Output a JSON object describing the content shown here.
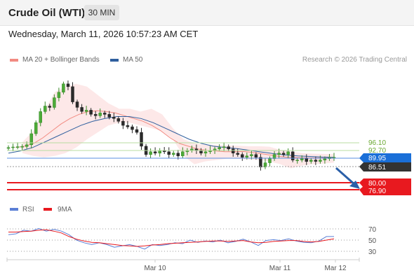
{
  "header": {
    "instrument": "Crude Oil (WTI)",
    "timeframe": "30 MIN"
  },
  "datetime": "Wednesday, March 11, 2026 10:57:23 AM CET",
  "legend": {
    "items": [
      {
        "label": "MA 20 + Bollinger Bands",
        "color": "#f28b82"
      },
      {
        "label": "MA 50",
        "color": "#2f5f9e"
      }
    ],
    "credit": "Research © 2026 Trading Central"
  },
  "price_levels": [
    {
      "value": "96.10",
      "color": "#6aa832"
    },
    {
      "value": "92.70",
      "color": "#6aa832"
    }
  ],
  "price_boxes": [
    {
      "value": "89.95",
      "color": "#1a6fd8",
      "text_color": "#ffffff"
    },
    {
      "value": "86.51",
      "color": "#333333",
      "text_color": "#ffffff"
    },
    {
      "value": "80.00",
      "color": "#e8191f",
      "text_color": "#ffffff"
    },
    {
      "value": "76.90",
      "color": "#e8191f",
      "text_color": "#ffffff"
    }
  ],
  "rsi_legend": {
    "items": [
      {
        "label": "RSI",
        "color": "#5b7fd6"
      },
      {
        "label": "9MA",
        "color": "#e8191f"
      }
    ]
  },
  "rsi_levels": [
    "70",
    "50",
    "30"
  ],
  "x_axis": {
    "labels": [
      "Mar 10",
      "Mar 11",
      "Mar 12"
    ]
  },
  "chart_data": {
    "type": "candlestick",
    "title": "Crude Oil (WTI)",
    "timeframe": "30 MIN",
    "y_levels": {
      "resistance": [
        96.1,
        92.7
      ],
      "pivot": 89.95,
      "last": 86.51,
      "support": [
        80.0,
        76.9
      ]
    },
    "close_series": [
      90.0,
      90.2,
      90.3,
      90.4,
      91.0,
      95.0,
      99.0,
      103.0,
      105.0,
      104.5,
      108.0,
      110.0,
      113.0,
      112.0,
      106.5,
      104.5,
      103.0,
      103.5,
      102.0,
      101.5,
      102.5,
      102.0,
      101.0,
      100.5,
      99.5,
      98.0,
      97.5,
      96.5,
      95.5,
      90.5,
      87.5,
      88.5,
      88.0,
      89.0,
      88.5,
      87.5,
      88.0,
      87.0,
      88.5,
      89.0,
      89.5,
      89.0,
      88.0,
      88.5,
      89.0,
      89.5,
      90.0,
      90.3,
      89.5,
      88.0,
      87.5,
      86.5,
      87.0,
      87.5,
      86.5,
      83.0,
      84.5,
      86.0,
      87.5,
      88.0,
      87.5,
      88.5,
      85.5,
      85.5,
      86.0,
      85.0,
      85.5,
      85.0,
      85.5,
      86.0,
      86.5,
      86.51
    ],
    "ma20_bollinger": {
      "ma": [
        90,
        90.5,
        91.5,
        93.5,
        96,
        98.5,
        100.5,
        102,
        103,
        103.3,
        103,
        102.5,
        101.5,
        100.5,
        99.5,
        98,
        96,
        93.5,
        91.5,
        90.5,
        89.5,
        89,
        88.8,
        88.5,
        88.5,
        88.6,
        88.3,
        87.8,
        87.3,
        86.8,
        86.5,
        86.4,
        86.3,
        86.3,
        86.3,
        86.4
      ],
      "upper": [
        92,
        96,
        103,
        110,
        112,
        113,
        112,
        109,
        106,
        104,
        104,
        103,
        104,
        102,
        97,
        93,
        91.5,
        91,
        91,
        90.8,
        90.7,
        90.5,
        90.5,
        90.3,
        89.2,
        88.6,
        88,
        87.8,
        87.7,
        87.6
      ],
      "lower": [
        88,
        87,
        86.5,
        87,
        88,
        90,
        93,
        95.5,
        98,
        99,
        99,
        98,
        97,
        96,
        93,
        87,
        84,
        85,
        85.5,
        86,
        86,
        85.7,
        85.5,
        85,
        84,
        82.5,
        83.5,
        84,
        84.2,
        84.6
      ]
    },
    "ma50": [
      88,
      88.8,
      90,
      92,
      94,
      96,
      98,
      99.5,
      100.5,
      101.2,
      101.2,
      100.5,
      99,
      97,
      95,
      93,
      91.5,
      90.5,
      90,
      89.6,
      89,
      88.4,
      87.8,
      87.3,
      87,
      86.8,
      86.6,
      86.5
    ],
    "forecast": {
      "from": 86.51,
      "to": 80.0,
      "direction": "down"
    },
    "rsi": {
      "levels": [
        70,
        50,
        30
      ],
      "rsi": [
        62,
        64,
        72,
        70,
        76,
        70,
        74,
        70,
        62,
        50,
        44,
        40,
        44,
        40,
        34,
        37,
        40,
        36,
        30,
        40,
        38,
        40,
        44,
        42,
        50,
        45,
        48,
        46,
        50,
        44,
        47,
        52,
        46,
        38,
        49,
        51,
        49,
        53,
        48,
        45,
        44,
        48,
        58,
        58
      ],
      "ma9": [
        68,
        68,
        69,
        70,
        72,
        73,
        70,
        66,
        58,
        52,
        48,
        45,
        44,
        42,
        40,
        38,
        37,
        36,
        37,
        39,
        40,
        42,
        43,
        44,
        45,
        46,
        47,
        48,
        48,
        47,
        48,
        49,
        46,
        44,
        45,
        47,
        48,
        49,
        49,
        47,
        46,
        47,
        50,
        53
      ]
    },
    "x_labels": [
      "Mar 10",
      "Mar 11",
      "Mar 12"
    ]
  }
}
